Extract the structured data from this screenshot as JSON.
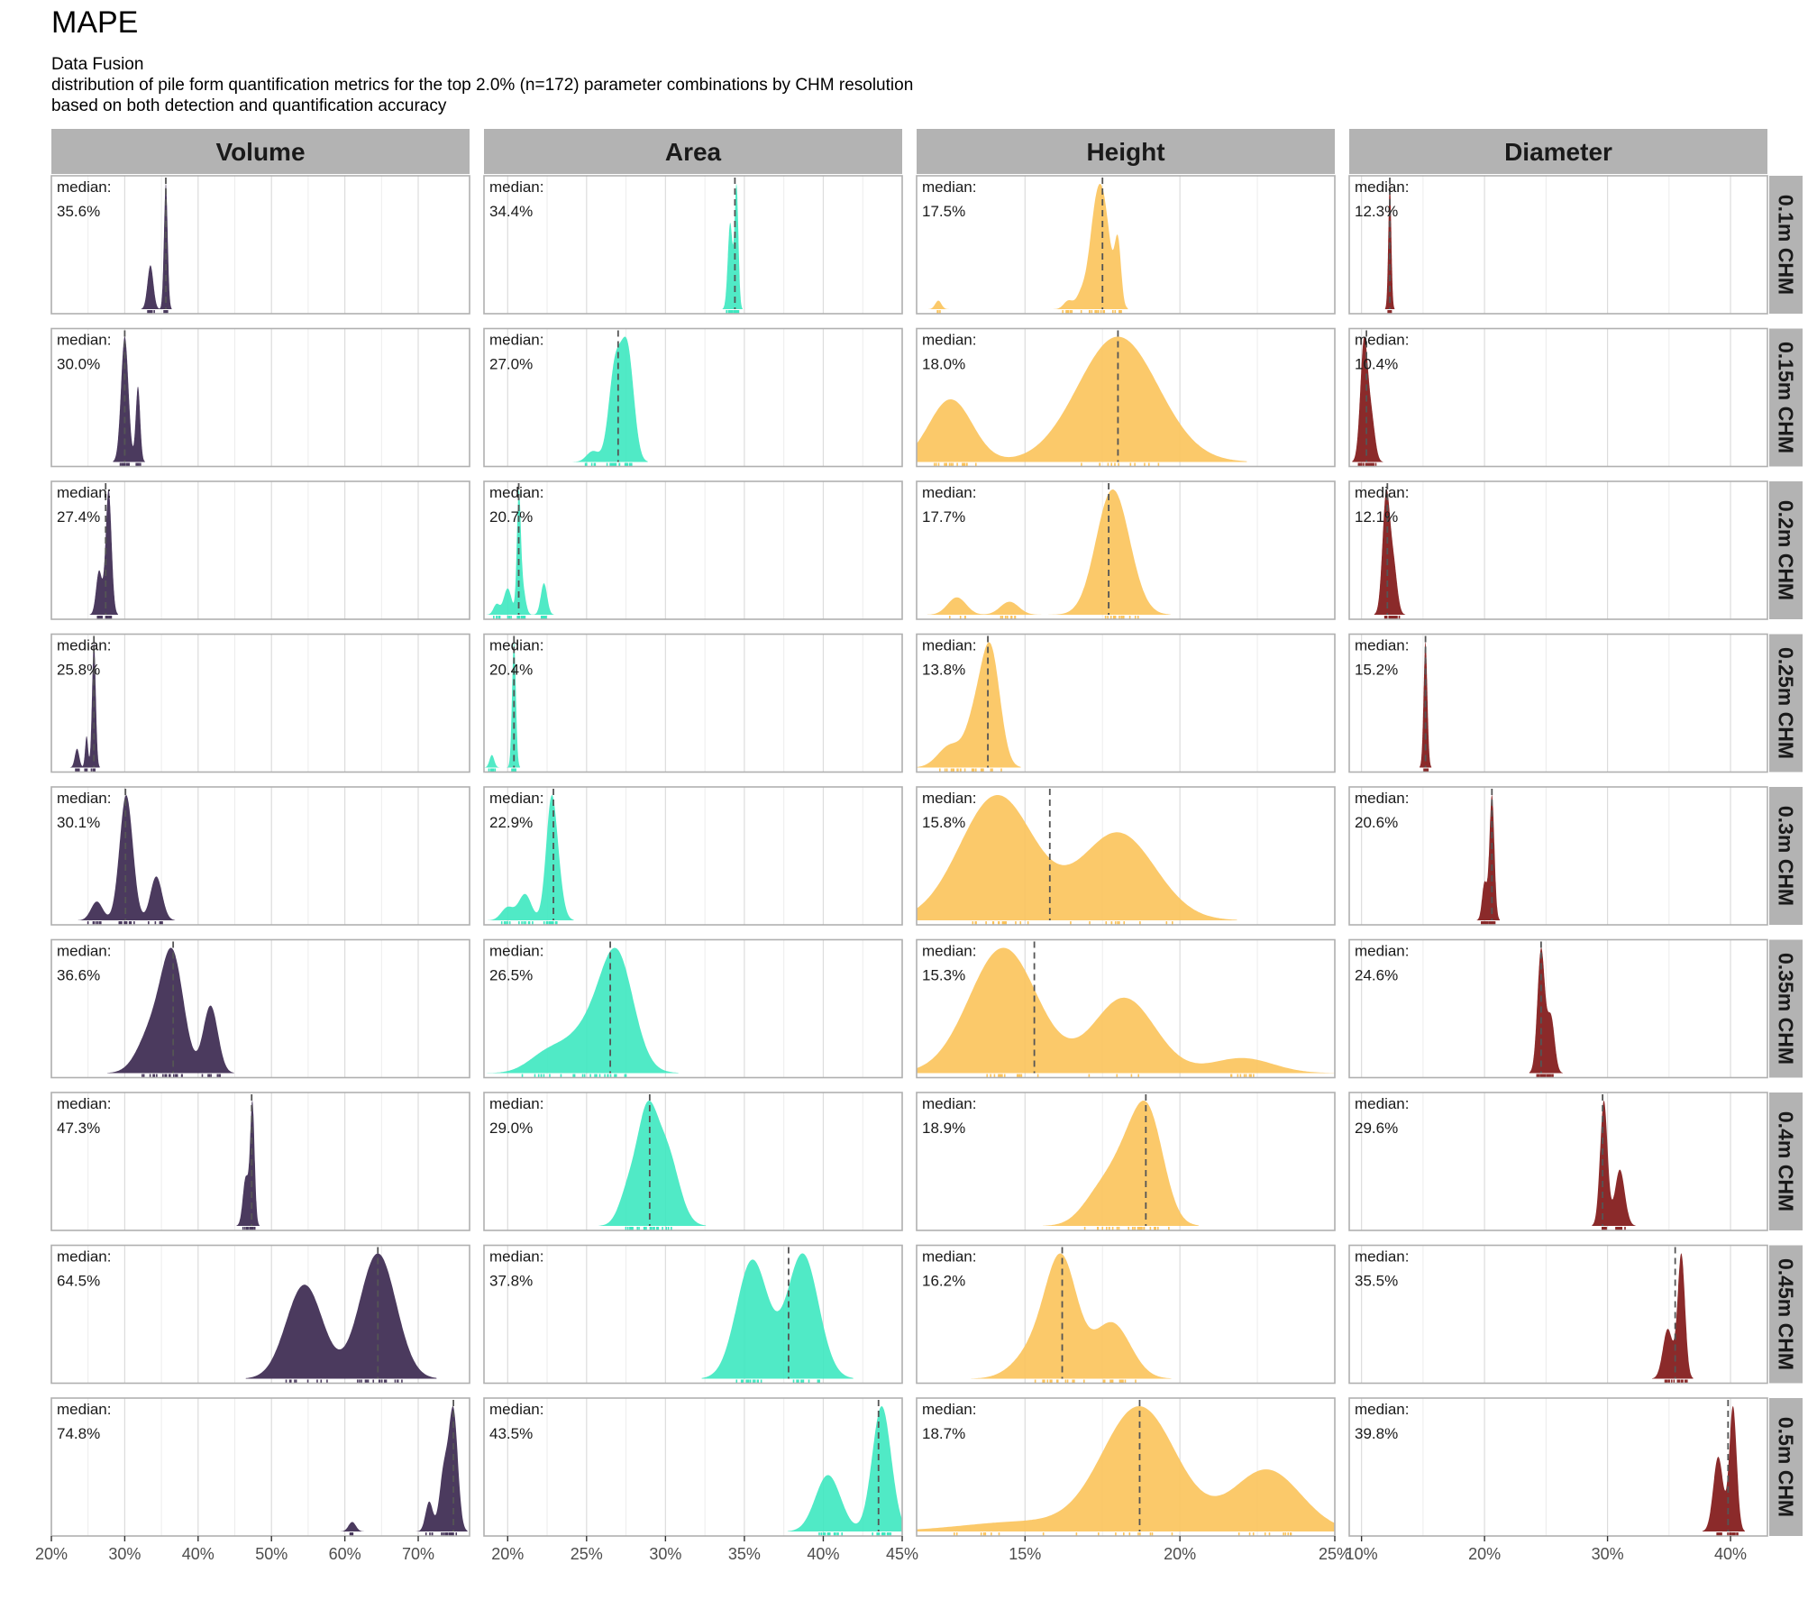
{
  "title": "MAPE",
  "subtitle_lines": [
    "Data Fusion",
    "distribution of pile form quantification metrics for the top 2.0% (n=172) parameter combinations by CHM resolution",
    "based on both detection and quantification accuracy"
  ],
  "colors": {
    "Volume": "#4b3a5e",
    "Area": "#3de8c0",
    "Height": "#fbc35a",
    "Diameter": "#8b2a2a",
    "strip_bg": "#b3b3b3",
    "grid": "#dcdcdc"
  },
  "chart_data": {
    "type": "area",
    "chart_style": "faceted density ridge plot with rug marks and dashed median line",
    "metric": "MAPE",
    "columns": [
      "Volume",
      "Area",
      "Height",
      "Diameter"
    ],
    "rows": [
      "0.1m CHM",
      "0.15m CHM",
      "0.2m CHM",
      "0.25m CHM",
      "0.3m CHM",
      "0.35m CHM",
      "0.4m CHM",
      "0.45m CHM",
      "0.5m CHM"
    ],
    "median_prefix": "median:",
    "x_axes": {
      "Volume": {
        "range": [
          0.2,
          0.77
        ],
        "ticks": [
          0.2,
          0.3,
          0.4,
          0.5,
          0.6,
          0.7
        ],
        "tick_labels": [
          "20%",
          "30%",
          "40%",
          "50%",
          "60%",
          "70%"
        ]
      },
      "Area": {
        "range": [
          0.185,
          0.45
        ],
        "ticks": [
          0.2,
          0.25,
          0.3,
          0.35,
          0.4,
          0.45
        ],
        "tick_labels": [
          "20%",
          "25%",
          "30%",
          "35%",
          "40%",
          "45%"
        ]
      },
      "Height": {
        "range": [
          0.115,
          0.25
        ],
        "ticks": [
          0.15,
          0.2,
          0.25
        ],
        "tick_labels": [
          "15%",
          "20%",
          "25%"
        ]
      },
      "Diameter": {
        "range": [
          0.09,
          0.43
        ],
        "ticks": [
          0.1,
          0.2,
          0.3,
          0.4
        ],
        "tick_labels": [
          "10%",
          "20%",
          "30%",
          "40%"
        ]
      }
    },
    "panels": {
      "Volume": [
        {
          "median": 0.356,
          "label": "35.6%",
          "peaks": [
            [
              0.335,
              0.004,
              0.35
            ],
            [
              0.356,
              0.0025,
              1.0
            ]
          ]
        },
        {
          "median": 0.3,
          "label": "30.0%",
          "peaks": [
            [
              0.3,
              0.005,
              1.0
            ],
            [
              0.318,
              0.003,
              0.6
            ]
          ]
        },
        {
          "median": 0.274,
          "label": "27.4%",
          "peaks": [
            [
              0.265,
              0.004,
              0.35
            ],
            [
              0.278,
              0.004,
              1.0
            ]
          ]
        },
        {
          "median": 0.258,
          "label": "25.8%",
          "peaks": [
            [
              0.235,
              0.003,
              0.15
            ],
            [
              0.248,
              0.002,
              0.25
            ],
            [
              0.258,
              0.0025,
              1.0
            ]
          ]
        },
        {
          "median": 0.301,
          "label": "30.1%",
          "peaks": [
            [
              0.262,
              0.008,
              0.15
            ],
            [
              0.302,
              0.009,
              1.0
            ],
            [
              0.343,
              0.008,
              0.35
            ]
          ]
        },
        {
          "median": 0.366,
          "label": "36.6%",
          "peaks": [
            [
              0.34,
              0.02,
              0.45
            ],
            [
              0.366,
              0.015,
              1.0
            ],
            [
              0.417,
              0.01,
              0.65
            ]
          ]
        },
        {
          "median": 0.473,
          "label": "47.3%",
          "peaks": [
            [
              0.465,
              0.004,
              0.4
            ],
            [
              0.474,
              0.003,
              1.0
            ]
          ]
        },
        {
          "median": 0.645,
          "label": "64.5%",
          "peaks": [
            [
              0.545,
              0.025,
              0.75
            ],
            [
              0.645,
              0.025,
              1.0
            ]
          ]
        },
        {
          "median": 0.748,
          "label": "74.8%",
          "peaks": [
            [
              0.61,
              0.005,
              0.08
            ],
            [
              0.715,
              0.005,
              0.25
            ],
            [
              0.735,
              0.006,
              0.5
            ],
            [
              0.748,
              0.006,
              1.0
            ]
          ]
        }
      ],
      "Area": [
        {
          "median": 0.344,
          "label": "34.4%",
          "peaks": [
            [
              0.341,
              0.0015,
              0.7
            ],
            [
              0.345,
              0.0012,
              1.0
            ]
          ]
        },
        {
          "median": 0.27,
          "label": "27.0%",
          "peaks": [
            [
              0.254,
              0.004,
              0.1
            ],
            [
              0.268,
              0.004,
              0.85
            ],
            [
              0.276,
              0.004,
              1.0
            ]
          ]
        },
        {
          "median": 0.207,
          "label": "20.7%",
          "peaks": [
            [
              0.193,
              0.002,
              0.1
            ],
            [
              0.2,
              0.0025,
              0.25
            ],
            [
              0.207,
              0.0012,
              1.0
            ],
            [
              0.209,
              0.002,
              0.3
            ],
            [
              0.223,
              0.002,
              0.3
            ]
          ]
        },
        {
          "median": 0.204,
          "label": "20.4%",
          "peaks": [
            [
              0.19,
              0.0015,
              0.1
            ],
            [
              0.204,
              0.0012,
              1.0
            ]
          ]
        },
        {
          "median": 0.229,
          "label": "22.9%",
          "peaks": [
            [
              0.2,
              0.004,
              0.15
            ],
            [
              0.211,
              0.004,
              0.3
            ],
            [
              0.229,
              0.004,
              1.0
            ],
            [
              0.227,
              0.003,
              0.5
            ]
          ]
        },
        {
          "median": 0.265,
          "label": "26.5%",
          "peaks": [
            [
              0.225,
              0.012,
              0.2
            ],
            [
              0.257,
              0.016,
              0.6
            ],
            [
              0.27,
              0.01,
              0.95
            ]
          ]
        },
        {
          "median": 0.29,
          "label": "29.0%",
          "peaks": [
            [
              0.277,
              0.006,
              0.4
            ],
            [
              0.288,
              0.006,
              1.0
            ],
            [
              0.3,
              0.008,
              0.85
            ]
          ]
        },
        {
          "median": 0.378,
          "label": "37.8%",
          "peaks": [
            [
              0.355,
              0.01,
              0.95
            ],
            [
              0.387,
              0.01,
              1.0
            ]
          ]
        },
        {
          "median": 0.435,
          "label": "43.5%",
          "peaks": [
            [
              0.403,
              0.008,
              0.45
            ],
            [
              0.437,
              0.006,
              1.0
            ]
          ]
        }
      ],
      "Height": [
        {
          "median": 0.175,
          "label": "17.5%",
          "peaks": [
            [
              0.122,
              0.001,
              0.08
            ],
            [
              0.164,
              0.0015,
              0.08
            ],
            [
              0.168,
              0.0015,
              0.12
            ],
            [
              0.172,
              0.002,
              0.4
            ],
            [
              0.175,
              0.0025,
              1.0
            ],
            [
              0.18,
              0.001,
              0.55
            ]
          ]
        },
        {
          "median": 0.18,
          "label": "18.0%",
          "peaks": [
            [
              0.126,
              0.007,
              0.5
            ],
            [
              0.18,
              0.013,
              1.0
            ]
          ]
        },
        {
          "median": 0.177,
          "label": "17.7%",
          "peaks": [
            [
              0.128,
              0.003,
              0.2
            ],
            [
              0.145,
              0.003,
              0.15
            ],
            [
              0.177,
              0.005,
              1.0
            ],
            [
              0.181,
              0.005,
              0.55
            ]
          ]
        },
        {
          "median": 0.138,
          "label": "13.8%",
          "peaks": [
            [
              0.126,
              0.004,
              0.2
            ],
            [
              0.134,
              0.003,
              0.4
            ],
            [
              0.139,
              0.003,
              1.0
            ]
          ]
        },
        {
          "median": 0.158,
          "label": "15.8%",
          "peaks": [
            [
              0.141,
              0.012,
              1.0
            ],
            [
              0.18,
              0.012,
              0.7
            ]
          ]
        },
        {
          "median": 0.153,
          "label": "15.3%",
          "peaks": [
            [
              0.143,
              0.011,
              1.0
            ],
            [
              0.182,
              0.01,
              0.6
            ],
            [
              0.22,
              0.01,
              0.12
            ]
          ]
        },
        {
          "median": 0.189,
          "label": "18.9%",
          "peaks": [
            [
              0.175,
              0.006,
              0.35
            ],
            [
              0.183,
              0.005,
              0.45
            ],
            [
              0.19,
              0.005,
              1.0
            ]
          ]
        },
        {
          "median": 0.162,
          "label": "16.2%",
          "peaks": [
            [
              0.155,
              0.007,
              0.35
            ],
            [
              0.162,
              0.005,
              1.0
            ],
            [
              0.178,
              0.006,
              0.55
            ]
          ]
        },
        {
          "median": 0.187,
          "label": "18.7%",
          "peaks": [
            [
              0.15,
              0.02,
              0.08
            ],
            [
              0.187,
              0.012,
              1.0
            ],
            [
              0.228,
              0.011,
              0.5
            ]
          ]
        }
      ],
      "Diameter": [
        {
          "median": 0.123,
          "label": "12.3%",
          "peaks": [
            [
              0.123,
              0.0012,
              1.0
            ]
          ]
        },
        {
          "median": 0.104,
          "label": "10.4%",
          "peaks": [
            [
              0.102,
              0.003,
              1.0
            ],
            [
              0.108,
              0.003,
              0.35
            ]
          ]
        },
        {
          "median": 0.121,
          "label": "12.1%",
          "peaks": [
            [
              0.12,
              0.003,
              1.0
            ],
            [
              0.126,
              0.003,
              0.4
            ]
          ]
        },
        {
          "median": 0.152,
          "label": "15.2%",
          "peaks": [
            [
              0.152,
              0.0015,
              1.0
            ]
          ]
        },
        {
          "median": 0.206,
          "label": "20.6%",
          "peaks": [
            [
              0.2,
              0.002,
              0.3
            ],
            [
              0.206,
              0.002,
              1.0
            ]
          ]
        },
        {
          "median": 0.246,
          "label": "24.6%",
          "peaks": [
            [
              0.246,
              0.003,
              1.0
            ],
            [
              0.254,
              0.003,
              0.45
            ]
          ]
        },
        {
          "median": 0.296,
          "label": "29.6%",
          "peaks": [
            [
              0.297,
              0.003,
              1.0
            ],
            [
              0.31,
              0.004,
              0.45
            ]
          ]
        },
        {
          "median": 0.355,
          "label": "35.5%",
          "peaks": [
            [
              0.349,
              0.004,
              0.4
            ],
            [
              0.36,
              0.003,
              1.0
            ]
          ]
        },
        {
          "median": 0.398,
          "label": "39.8%",
          "peaks": [
            [
              0.39,
              0.004,
              0.6
            ],
            [
              0.402,
              0.003,
              1.0
            ]
          ]
        }
      ]
    }
  }
}
